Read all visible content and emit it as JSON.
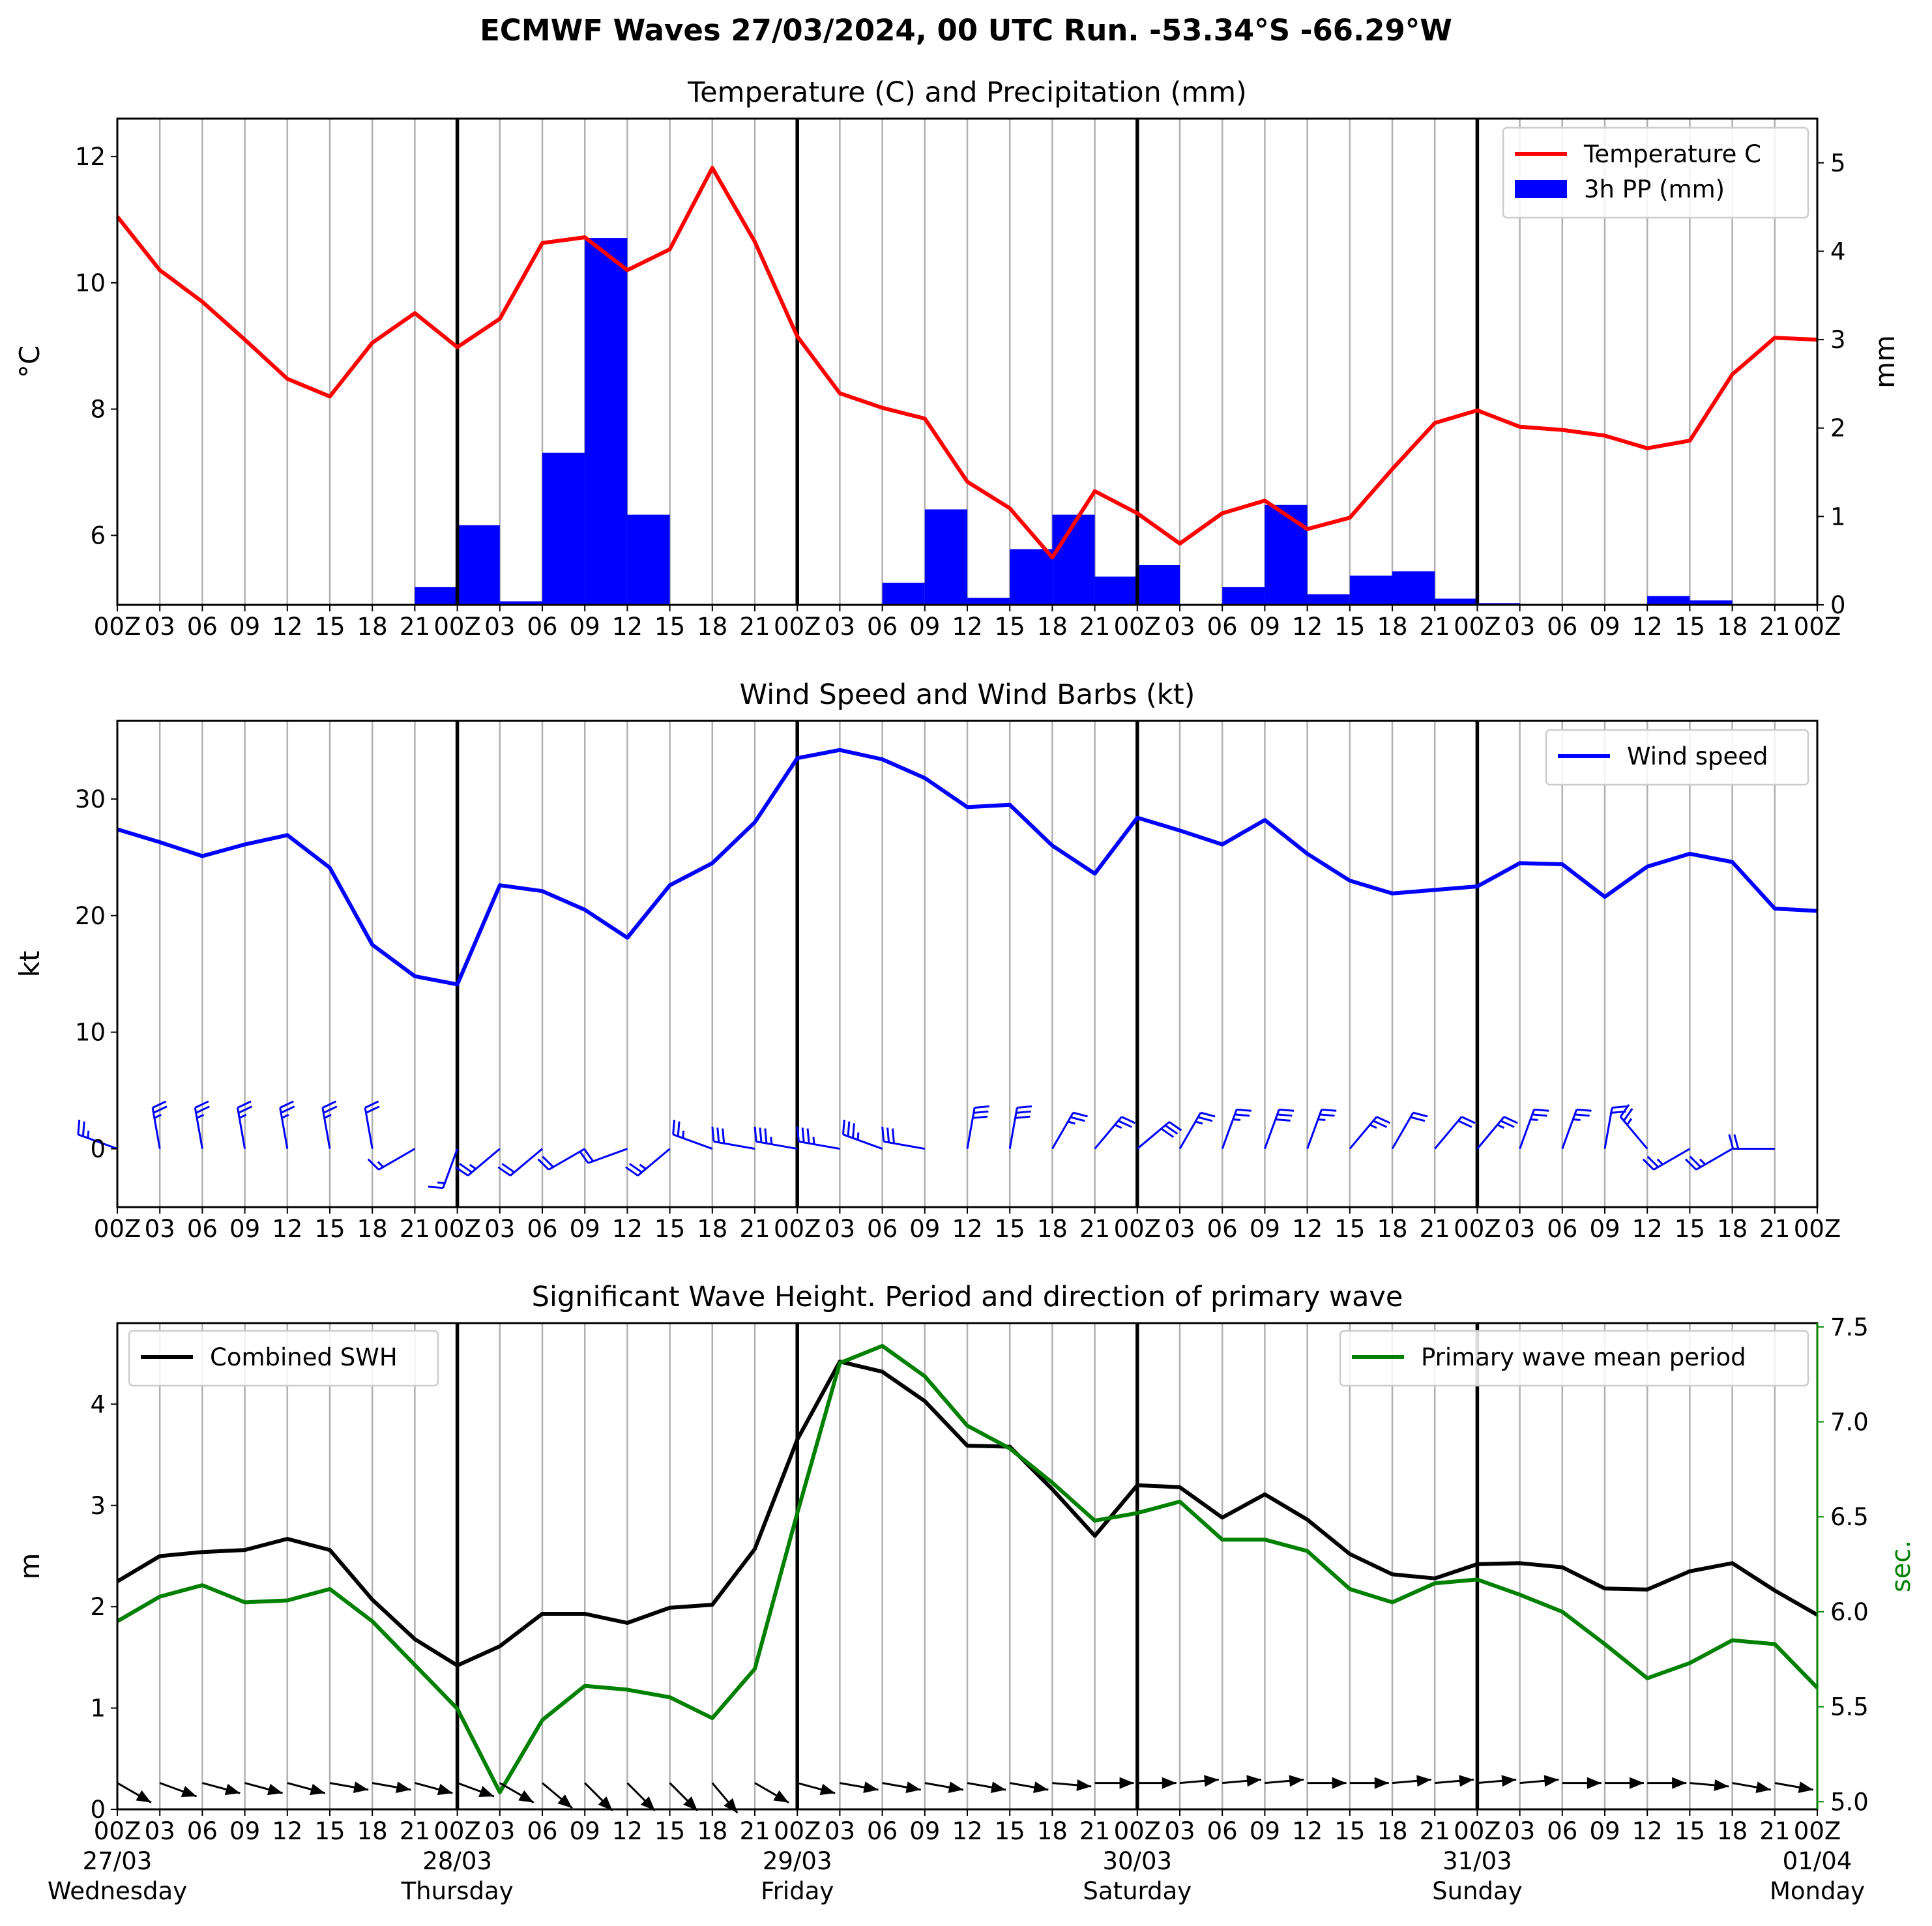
{
  "title": "ECMWF Waves 27/03/2024, 00 UTC Run. -53.34°S -66.29°W",
  "x_ticks": [
    "00Z",
    "03",
    "06",
    "09",
    "12",
    "15",
    "18",
    "21",
    "00Z",
    "03",
    "06",
    "09",
    "12",
    "15",
    "18",
    "21",
    "00Z",
    "03",
    "06",
    "09",
    "12",
    "15",
    "18",
    "21",
    "00Z",
    "03",
    "06",
    "09",
    "12",
    "15",
    "18",
    "21",
    "00Z",
    "03",
    "06",
    "09",
    "12",
    "15",
    "18",
    "21",
    "00Z"
  ],
  "day_labels": [
    {
      "date": "27/03",
      "day": "Wednesday",
      "step": 0
    },
    {
      "date": "28/03",
      "day": "Thursday",
      "step": 8
    },
    {
      "date": "29/03",
      "day": "Friday",
      "step": 16
    },
    {
      "date": "30/03",
      "day": "Saturday",
      "step": 24
    },
    {
      "date": "31/03",
      "day": "Sunday",
      "step": 32
    },
    {
      "date": "01/04",
      "day": "Monday",
      "step": 40
    }
  ],
  "chart_data": [
    {
      "type": "line",
      "title": "Temperature (C) and Precipitation (mm)",
      "ylabel": "$^\\circ$C",
      "y2label": "mm",
      "ylim": [
        4.9,
        12.6
      ],
      "y2lim": [
        0,
        5.5
      ],
      "yticks": [
        6,
        8,
        10,
        12
      ],
      "y2ticks": [
        0,
        1,
        2,
        3,
        4,
        5
      ],
      "legend_position": "upper right",
      "legend": [
        "Temperature C",
        "3h PP (mm)"
      ],
      "x_steps": 41,
      "series": [
        {
          "name": "Temperature C",
          "color": "#ff0000",
          "values": [
            11.05,
            10.2,
            9.7,
            9.1,
            8.48,
            8.2,
            9.05,
            9.52,
            8.98,
            9.43,
            10.63,
            10.72,
            10.2,
            10.53,
            11.82,
            10.65,
            9.15,
            8.25,
            8.02,
            7.85,
            6.85,
            6.43,
            5.65,
            6.7,
            6.35,
            5.87,
            6.35,
            6.55,
            6.1,
            6.28,
            7.05,
            7.78,
            7.98,
            7.72,
            7.67,
            7.58,
            7.38,
            7.5,
            8.55,
            9.13,
            9.1
          ]
        },
        {
          "name": "3h PP (mm)",
          "type": "bar",
          "color": "#0000ff",
          "values": [
            0,
            0,
            0,
            0,
            0,
            0,
            0,
            0.2,
            0.9,
            0.04,
            1.72,
            4.15,
            1.02,
            0,
            0,
            0,
            0,
            0,
            0.25,
            1.08,
            0.08,
            0.63,
            1.02,
            0.32,
            0.45,
            0,
            0.2,
            1.13,
            0.12,
            0.33,
            0.38,
            0.07,
            0.02,
            0,
            0,
            0,
            0.1,
            0.05,
            0,
            0,
            0
          ]
        }
      ]
    },
    {
      "type": "line",
      "title": "Wind Speed and Wind Barbs (kt)",
      "ylabel": "kt",
      "ylim": [
        -5,
        36.7
      ],
      "yticks": [
        0,
        10,
        20,
        30
      ],
      "legend_position": "upper right",
      "legend": [
        "Wind speed"
      ],
      "x_steps": 41,
      "series": [
        {
          "name": "Wind speed",
          "color": "#0000ff",
          "values": [
            27.4,
            26.3,
            25.1,
            26.1,
            26.9,
            24.1,
            17.5,
            14.8,
            14.1,
            22.6,
            22.1,
            20.5,
            18.1,
            22.6,
            24.5,
            28.0,
            33.5,
            34.2,
            33.4,
            31.8,
            29.3,
            29.5,
            26.0,
            23.6,
            28.4,
            27.3,
            26.1,
            28.2,
            25.3,
            23.0,
            21.9,
            22.2,
            22.5,
            24.5,
            24.4,
            21.6,
            24.2,
            25.3,
            24.6,
            20.6,
            20.4
          ]
        },
        {
          "name": "Wind barbs",
          "type": "barbs",
          "color": "#0000ff",
          "direction_deg": [
            290,
            350,
            350,
            350,
            350,
            350,
            350,
            240,
            200,
            230,
            230,
            240,
            250,
            230,
            290,
            280,
            280,
            280,
            290,
            280,
            10,
            10,
            30,
            40,
            50,
            30,
            20,
            20,
            20,
            40,
            30,
            40,
            40,
            20,
            20,
            10,
            320,
            240,
            240,
            270,
            310
          ],
          "speed_kt": [
            27.4,
            26.3,
            25.1,
            26.1,
            26.9,
            24.1,
            17.5,
            14.8,
            14.1,
            22.6,
            22.1,
            20.5,
            18.1,
            22.6,
            24.5,
            28.0,
            33.5,
            34.2,
            33.4,
            31.8,
            29.3,
            29.5,
            26.0,
            23.6,
            28.4,
            27.3,
            26.1,
            28.2,
            25.3,
            23.0,
            21.9,
            22.2,
            22.5,
            24.5,
            24.4,
            21.6,
            24.2,
            25.3,
            24.6,
            20.6,
            20.4
          ]
        }
      ]
    },
    {
      "type": "line",
      "title": "Significant Wave Height. Period and direction of primary wave",
      "ylabel": "m",
      "y2label": "sec.",
      "ylim": [
        0,
        4.8
      ],
      "y2lim": [
        4.96,
        7.52
      ],
      "yticks": [
        0,
        1,
        2,
        3,
        4
      ],
      "y2ticks": [
        5.0,
        5.5,
        6.0,
        6.5,
        7.0,
        7.5
      ],
      "legend": [
        "Combined SWH",
        "Primary wave mean period"
      ],
      "legend_positions": [
        "upper left",
        "upper right"
      ],
      "x_steps": 41,
      "series": [
        {
          "name": "Combined SWH",
          "color": "#000000",
          "values": [
            2.25,
            2.5,
            2.54,
            2.56,
            2.67,
            2.56,
            2.07,
            1.68,
            1.42,
            1.61,
            1.93,
            1.93,
            1.84,
            1.99,
            2.02,
            2.57,
            3.65,
            4.42,
            4.32,
            4.03,
            3.59,
            3.58,
            3.16,
            2.7,
            3.2,
            3.18,
            2.88,
            3.11,
            2.86,
            2.52,
            2.32,
            2.28,
            2.42,
            2.43,
            2.39,
            2.18,
            2.17,
            2.35,
            2.43,
            2.16,
            1.92
          ]
        },
        {
          "name": "Primary wave mean period",
          "color": "#008000",
          "axis": "right",
          "values": [
            5.95,
            6.08,
            6.14,
            6.05,
            6.06,
            6.12,
            5.95,
            5.72,
            5.49,
            5.05,
            5.43,
            5.61,
            5.59,
            5.55,
            5.44,
            5.7,
            6.52,
            7.31,
            7.4,
            7.24,
            6.98,
            6.86,
            6.68,
            6.48,
            6.52,
            6.58,
            6.38,
            6.38,
            6.32,
            6.12,
            6.05,
            6.15,
            6.17,
            6.09,
            6.0,
            5.83,
            5.65,
            5.73,
            5.85,
            5.83,
            5.6
          ]
        },
        {
          "name": "Primary wave direction",
          "type": "arrows",
          "color": "#000000",
          "direction_deg": [
            300,
            290,
            285,
            285,
            285,
            280,
            280,
            285,
            290,
            300,
            310,
            315,
            315,
            315,
            320,
            300,
            285,
            280,
            280,
            280,
            280,
            280,
            275,
            270,
            270,
            265,
            265,
            265,
            270,
            270,
            265,
            265,
            265,
            265,
            270,
            270,
            270,
            275,
            280,
            280,
            280
          ]
        }
      ]
    }
  ]
}
